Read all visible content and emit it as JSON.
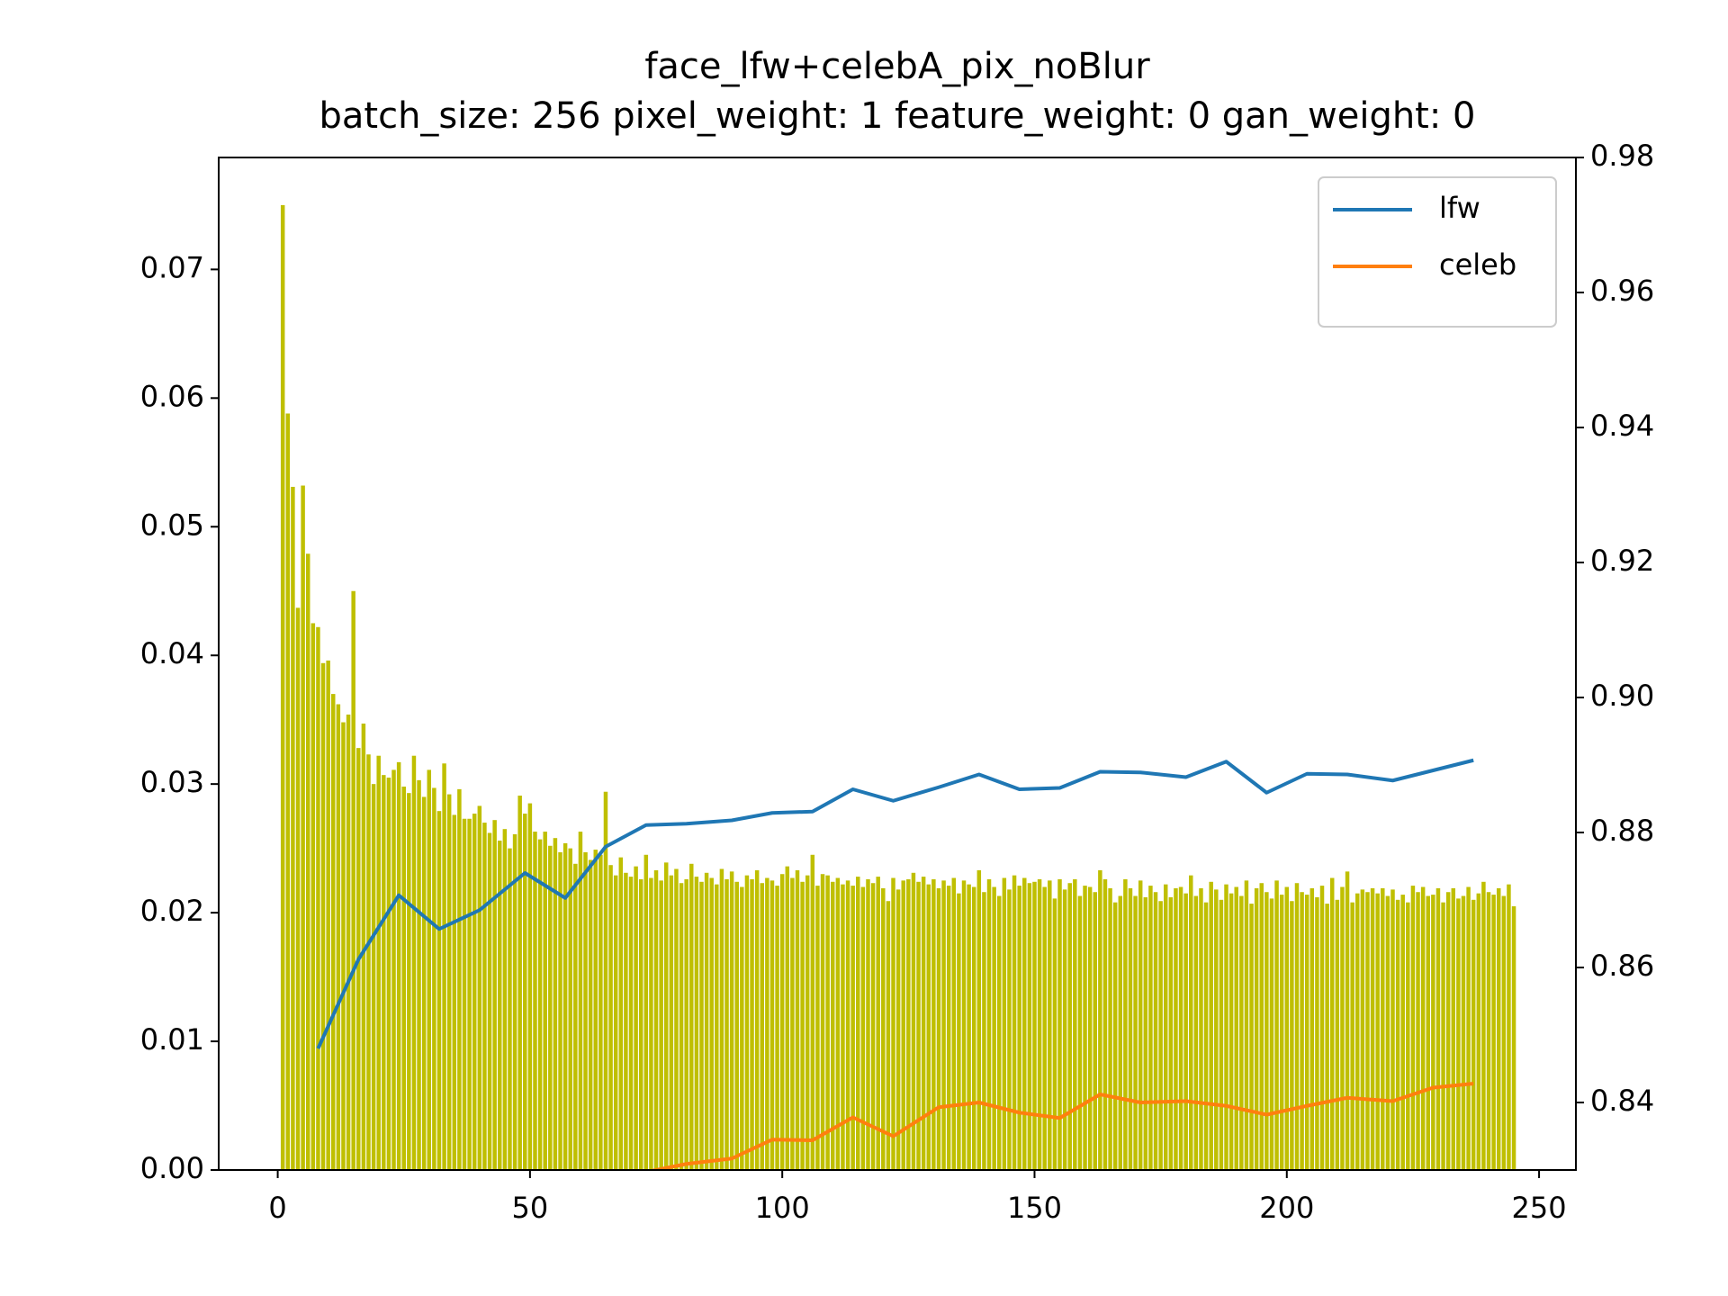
{
  "chart_data": {
    "type": "bar",
    "title": "face_lfw+celebA_pix_noBlur",
    "subtitle": "batch_size: 256 pixel_weight: 1 feature_weight: 0 gan_weight: 0",
    "color": "#bfbf00",
    "x": [
      1,
      2,
      3,
      4,
      5,
      6,
      7,
      8,
      9,
      10,
      11,
      12,
      13,
      14,
      15,
      16,
      17,
      18,
      19,
      20,
      21,
      22,
      23,
      24,
      25,
      26,
      27,
      28,
      29,
      30,
      31,
      32,
      33,
      34,
      35,
      36,
      37,
      38,
      39,
      40,
      41,
      42,
      43,
      44,
      45,
      46,
      47,
      48,
      49,
      50,
      51,
      52,
      53,
      54,
      55,
      56,
      57,
      58,
      59,
      60,
      61,
      62,
      63,
      64,
      65,
      66,
      67,
      68,
      69,
      70,
      71,
      72,
      73,
      74,
      75,
      76,
      77,
      78,
      79,
      80,
      81,
      82,
      83,
      84,
      85,
      86,
      87,
      88,
      89,
      90,
      91,
      92,
      93,
      94,
      95,
      96,
      97,
      98,
      99,
      100,
      101,
      102,
      103,
      104,
      105,
      106,
      107,
      108,
      109,
      110,
      111,
      112,
      113,
      114,
      115,
      116,
      117,
      118,
      119,
      120,
      121,
      122,
      123,
      124,
      125,
      126,
      127,
      128,
      129,
      130,
      131,
      132,
      133,
      134,
      135,
      136,
      137,
      138,
      139,
      140,
      141,
      142,
      143,
      144,
      145,
      146,
      147,
      148,
      149,
      150,
      151,
      152,
      153,
      154,
      155,
      156,
      157,
      158,
      159,
      160,
      161,
      162,
      163,
      164,
      165,
      166,
      167,
      168,
      169,
      170,
      171,
      172,
      173,
      174,
      175,
      176,
      177,
      178,
      179,
      180,
      181,
      182,
      183,
      184,
      185,
      186,
      187,
      188,
      189,
      190,
      191,
      192,
      193,
      194,
      195,
      196,
      197,
      198,
      199,
      200,
      201,
      202,
      203,
      204,
      205,
      206,
      207,
      208,
      209,
      210,
      211,
      212,
      213,
      214,
      215,
      216,
      217,
      218,
      219,
      220,
      221,
      222,
      223,
      224,
      225,
      226,
      227,
      228,
      229,
      230,
      231,
      232,
      233,
      234,
      235,
      236,
      237,
      238,
      239,
      240,
      241,
      242,
      243,
      244,
      245
    ],
    "values": [
      0.075,
      0.0588,
      0.0531,
      0.0437,
      0.0532,
      0.0479,
      0.0425,
      0.0422,
      0.0394,
      0.0396,
      0.037,
      0.0362,
      0.0348,
      0.0354,
      0.045,
      0.0328,
      0.0347,
      0.0323,
      0.03,
      0.0322,
      0.0307,
      0.0305,
      0.0311,
      0.0317,
      0.0298,
      0.0293,
      0.0322,
      0.0303,
      0.029,
      0.0311,
      0.0297,
      0.0279,
      0.0316,
      0.0292,
      0.0276,
      0.0296,
      0.0273,
      0.0273,
      0.0277,
      0.0283,
      0.027,
      0.0262,
      0.0272,
      0.0256,
      0.0265,
      0.025,
      0.0261,
      0.0291,
      0.0277,
      0.0285,
      0.0263,
      0.0257,
      0.0263,
      0.0252,
      0.0258,
      0.0247,
      0.0254,
      0.025,
      0.0238,
      0.0263,
      0.0247,
      0.0241,
      0.0249,
      0.0245,
      0.0294,
      0.0237,
      0.0229,
      0.0243,
      0.0231,
      0.0228,
      0.0236,
      0.0226,
      0.0245,
      0.0227,
      0.0233,
      0.0225,
      0.0239,
      0.0229,
      0.0234,
      0.0223,
      0.0226,
      0.0238,
      0.0228,
      0.0224,
      0.0231,
      0.0227,
      0.0222,
      0.0234,
      0.0226,
      0.0232,
      0.0224,
      0.022,
      0.0229,
      0.0226,
      0.0233,
      0.0223,
      0.0227,
      0.0225,
      0.0221,
      0.023,
      0.0236,
      0.0227,
      0.0233,
      0.0224,
      0.0229,
      0.0245,
      0.0221,
      0.023,
      0.0229,
      0.0224,
      0.0227,
      0.0222,
      0.0225,
      0.0221,
      0.0228,
      0.022,
      0.0226,
      0.0223,
      0.0228,
      0.0219,
      0.0209,
      0.0227,
      0.0218,
      0.0225,
      0.0226,
      0.0231,
      0.0224,
      0.0228,
      0.0222,
      0.0226,
      0.0219,
      0.0225,
      0.0221,
      0.0227,
      0.0215,
      0.0225,
      0.0222,
      0.022,
      0.0233,
      0.0216,
      0.0226,
      0.022,
      0.0213,
      0.0227,
      0.0218,
      0.0229,
      0.0221,
      0.0227,
      0.0223,
      0.0224,
      0.0226,
      0.022,
      0.0225,
      0.0211,
      0.0226,
      0.0218,
      0.0223,
      0.0226,
      0.0213,
      0.0221,
      0.022,
      0.0216,
      0.0233,
      0.0226,
      0.0219,
      0.0208,
      0.0213,
      0.0226,
      0.0219,
      0.0213,
      0.0225,
      0.0212,
      0.0221,
      0.0216,
      0.0209,
      0.0222,
      0.0212,
      0.0219,
      0.022,
      0.0215,
      0.0229,
      0.0213,
      0.0219,
      0.0208,
      0.0224,
      0.0218,
      0.021,
      0.0222,
      0.0215,
      0.022,
      0.0213,
      0.0225,
      0.0207,
      0.0219,
      0.0223,
      0.0216,
      0.0211,
      0.0225,
      0.0214,
      0.022,
      0.0209,
      0.0223,
      0.0216,
      0.0214,
      0.0219,
      0.0212,
      0.0221,
      0.0207,
      0.0227,
      0.021,
      0.022,
      0.0232,
      0.0208,
      0.0215,
      0.0218,
      0.0216,
      0.0219,
      0.0215,
      0.0219,
      0.0213,
      0.0218,
      0.021,
      0.0214,
      0.0208,
      0.0221,
      0.0216,
      0.022,
      0.0213,
      0.0214,
      0.0219,
      0.0208,
      0.0216,
      0.0219,
      0.0211,
      0.0213,
      0.022,
      0.021,
      0.0215,
      0.0224,
      0.0216,
      0.0214,
      0.0219,
      0.0213,
      0.0222,
      0.0205
    ],
    "xlim": [
      -11.7,
      257.3
    ],
    "xticks": [
      0,
      50,
      100,
      150,
      200,
      250
    ],
    "ylim": [
      0,
      0.0787
    ],
    "yticks": [
      {
        "value": 0,
        "label": "0.00"
      },
      0.01,
      0.02,
      0.03,
      0.04,
      0.05,
      0.06,
      0.07
    ],
    "y2lim": [
      0.83,
      0.98
    ],
    "y2ticks": [
      0.84,
      0.86,
      0.88,
      {
        "value": 0.9,
        "label": "0.90"
      },
      0.92,
      0.94,
      0.96,
      0.98
    ],
    "legend": "upper right",
    "series": [
      {
        "name": "lfw",
        "color": "#1f77b4",
        "type": "line",
        "axis": "y2",
        "x": [
          8,
          16,
          24,
          32,
          40,
          49,
          57,
          65,
          73,
          81,
          90,
          98,
          106,
          114,
          122,
          131,
          139,
          147,
          155,
          163,
          171,
          180,
          188,
          196,
          204,
          212,
          221,
          229,
          237
        ],
        "values": [
          0.848,
          0.8612,
          0.8707,
          0.8657,
          0.8685,
          0.874,
          0.8703,
          0.8779,
          0.8811,
          0.8813,
          0.8818,
          0.8829,
          0.8831,
          0.8864,
          0.8847,
          0.8867,
          0.8886,
          0.8864,
          0.8866,
          0.889,
          0.8889,
          0.8882,
          0.8905,
          0.8859,
          0.8887,
          0.8886,
          0.8877,
          0.8892,
          0.8907
        ]
      },
      {
        "name": "celeb",
        "color": "#ff7f0e",
        "type": "line",
        "axis": "y2",
        "x": [
          73,
          81,
          90,
          98,
          106,
          114,
          122,
          131,
          139,
          147,
          155,
          163,
          171,
          180,
          188,
          196,
          204,
          212,
          221,
          229,
          237
        ],
        "values": [
          0.8297,
          0.8309,
          0.8317,
          0.8345,
          0.8344,
          0.8378,
          0.835,
          0.8393,
          0.84,
          0.8385,
          0.8377,
          0.8412,
          0.84,
          0.8402,
          0.8395,
          0.8382,
          0.8395,
          0.8407,
          0.8402,
          0.8422,
          0.8428
        ]
      }
    ]
  }
}
